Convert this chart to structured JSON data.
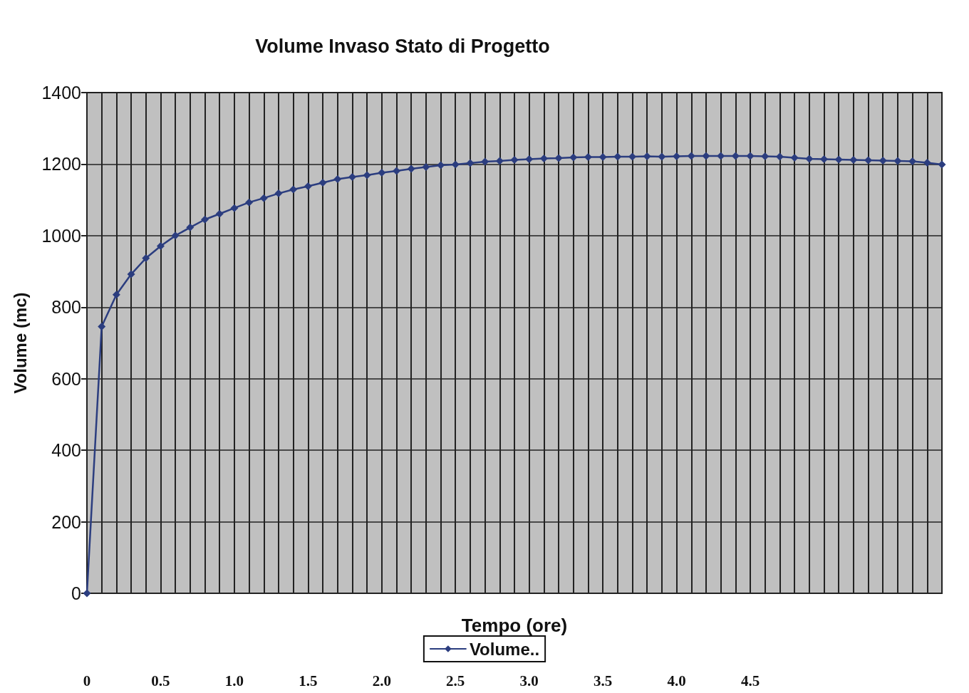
{
  "chart_data": {
    "type": "line",
    "title": "Volume Invaso Stato di Progetto",
    "xlabel": "Tempo (ore)",
    "ylabel": "Volume (mc)",
    "x": [
      0,
      0.1,
      0.2,
      0.3,
      0.4,
      0.5,
      0.6,
      0.7,
      0.8,
      0.9,
      1.0,
      1.1,
      1.2,
      1.3,
      1.4,
      1.5,
      1.6,
      1.7,
      1.8,
      1.9,
      2.0,
      2.1,
      2.2,
      2.3,
      2.4,
      2.5,
      2.6,
      2.7,
      2.8,
      2.9,
      3.0,
      3.1,
      3.2,
      3.3,
      3.4,
      3.5,
      3.6,
      3.7,
      3.8,
      3.9,
      4.0,
      4.1,
      4.2,
      4.3,
      4.4,
      4.5,
      4.6,
      4.7,
      4.8,
      4.9,
      5.0,
      5.1,
      5.2,
      5.3,
      5.4,
      5.5,
      5.6,
      5.7,
      5.8
    ],
    "series": [
      {
        "name": "Volume..",
        "color": "#2b3d7f",
        "values": [
          0,
          746,
          835,
          892,
          937,
          971,
          1000,
          1023,
          1045,
          1061,
          1077,
          1093,
          1105,
          1118,
          1129,
          1138,
          1148,
          1158,
          1164,
          1169,
          1176,
          1181,
          1187,
          1192,
          1197,
          1199,
          1203,
          1207,
          1209,
          1212,
          1214,
          1216,
          1217,
          1219,
          1220,
          1220,
          1221,
          1221,
          1222,
          1221,
          1222,
          1223,
          1223,
          1223,
          1223,
          1223,
          1222,
          1221,
          1218,
          1215,
          1214,
          1213,
          1212,
          1211,
          1210,
          1209,
          1208,
          1204,
          1199
        ]
      }
    ],
    "xlim": [
      0,
      5.8
    ],
    "xticks": [
      {
        "value": 0,
        "label": "0"
      },
      {
        "value": 0.1,
        "label": null
      },
      {
        "value": 0.2,
        "label": null
      },
      {
        "value": 0.3,
        "label": null
      },
      {
        "value": 0.4,
        "label": null
      },
      {
        "value": 0.5,
        "label": "0.5"
      },
      {
        "value": 0.6,
        "label": null
      },
      {
        "value": 0.7,
        "label": null
      },
      {
        "value": 0.8,
        "label": null
      },
      {
        "value": 0.9,
        "label": null
      },
      {
        "value": 1.0,
        "label": "1.0"
      },
      {
        "value": 1.1,
        "label": null
      },
      {
        "value": 1.2,
        "label": null
      },
      {
        "value": 1.3,
        "label": null
      },
      {
        "value": 1.4,
        "label": null
      },
      {
        "value": 1.5,
        "label": "1.5"
      },
      {
        "value": 1.6,
        "label": null
      },
      {
        "value": 1.7,
        "label": null
      },
      {
        "value": 1.8,
        "label": null
      },
      {
        "value": 1.9,
        "label": null
      },
      {
        "value": 2.0,
        "label": "2.0"
      },
      {
        "value": 2.1,
        "label": null
      },
      {
        "value": 2.2,
        "label": null
      },
      {
        "value": 2.3,
        "label": null
      },
      {
        "value": 2.4,
        "label": null
      },
      {
        "value": 2.5,
        "label": "2.5"
      },
      {
        "value": 2.6,
        "label": null
      },
      {
        "value": 2.7,
        "label": null
      },
      {
        "value": 2.8,
        "label": null
      },
      {
        "value": 2.9,
        "label": null
      },
      {
        "value": 3.0,
        "label": "3.0"
      },
      {
        "value": 3.1,
        "label": null
      },
      {
        "value": 3.2,
        "label": null
      },
      {
        "value": 3.3,
        "label": null
      },
      {
        "value": 3.4,
        "label": null
      },
      {
        "value": 3.5,
        "label": "3.5"
      },
      {
        "value": 3.6,
        "label": null
      },
      {
        "value": 3.7,
        "label": null
      },
      {
        "value": 3.8,
        "label": null
      },
      {
        "value": 3.9,
        "label": null
      },
      {
        "value": 4.0,
        "label": "4.0"
      },
      {
        "value": 4.1,
        "label": null
      },
      {
        "value": 4.2,
        "label": null
      },
      {
        "value": 4.3,
        "label": null
      },
      {
        "value": 4.4,
        "label": null
      },
      {
        "value": 4.5,
        "label": "4.5"
      },
      {
        "value": 4.6,
        "label": null
      },
      {
        "value": 4.7,
        "label": null
      },
      {
        "value": 4.8,
        "label": null
      },
      {
        "value": 4.9,
        "label": null
      },
      {
        "value": 5.0,
        "label": null
      },
      {
        "value": 5.1,
        "label": null
      },
      {
        "value": 5.2,
        "label": null
      },
      {
        "value": 5.3,
        "label": null
      },
      {
        "value": 5.4,
        "label": null
      },
      {
        "value": 5.5,
        "label": null
      },
      {
        "value": 5.6,
        "label": null
      },
      {
        "value": 5.7,
        "label": null
      },
      {
        "value": 5.8,
        "label": null
      }
    ],
    "ylim": [
      0,
      1400
    ],
    "yticks": [
      0,
      200,
      400,
      600,
      800,
      1000,
      1200,
      1400
    ],
    "grid": true,
    "legend": "bottom",
    "marker": "diamond",
    "line_style": "solid"
  }
}
